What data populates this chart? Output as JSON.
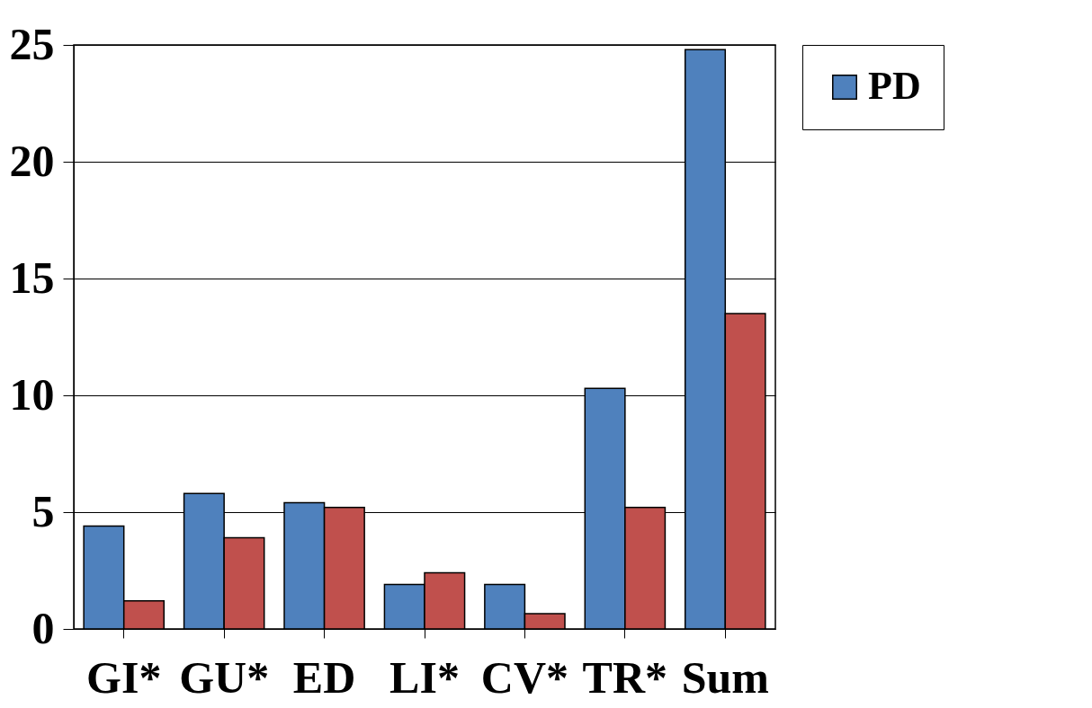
{
  "chart_data": {
    "type": "bar",
    "categories": [
      "GI*",
      "GU*",
      "ED",
      "LI*",
      "CV*",
      "TR*",
      "Sum"
    ],
    "series": [
      {
        "name": "PD",
        "color": "#4f81bd",
        "values": [
          4.4,
          5.8,
          5.4,
          1.9,
          1.9,
          10.3,
          24.8
        ]
      },
      {
        "color": "#c0504d",
        "values": [
          1.2,
          3.9,
          5.2,
          2.4,
          0.65,
          5.2,
          13.5
        ]
      }
    ],
    "ylim": [
      0,
      25
    ],
    "yticks": [
      0,
      5,
      10,
      15,
      20,
      25
    ],
    "grid": "y",
    "legend": "right"
  }
}
